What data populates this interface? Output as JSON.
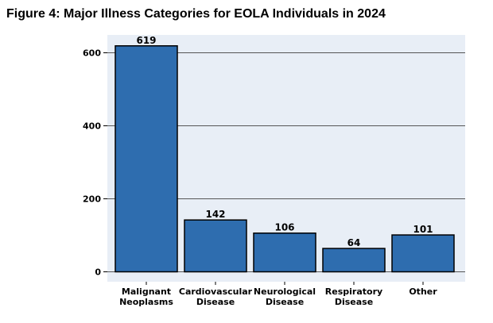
{
  "figure_title": "Figure 4: Major Illness Categories for EOLA Individuals in 2024",
  "chart_data": {
    "type": "bar",
    "title": "Figure 4: Major Illness Categories for EOLA Individuals in 2024",
    "categories": [
      [
        "Malignant",
        "Neoplasms"
      ],
      [
        "Cardiovascular",
        "Disease"
      ],
      [
        "Neurological",
        "Disease"
      ],
      [
        "Respiratory",
        "Disease"
      ],
      [
        "Other"
      ]
    ],
    "values": [
      619,
      142,
      106,
      64,
      101
    ],
    "data_labels": [
      "619",
      "142",
      "106",
      "64",
      "101"
    ],
    "xlabel": "",
    "ylabel": "",
    "ylim": [
      0,
      640
    ],
    "yticks": [
      0,
      200,
      400,
      600
    ],
    "grid": true,
    "legend": "none",
    "colors": {
      "bar": "#2e6daf",
      "bar_edge": "#000000",
      "plot_bg": "#e8eef6",
      "grid": "#555555"
    }
  }
}
